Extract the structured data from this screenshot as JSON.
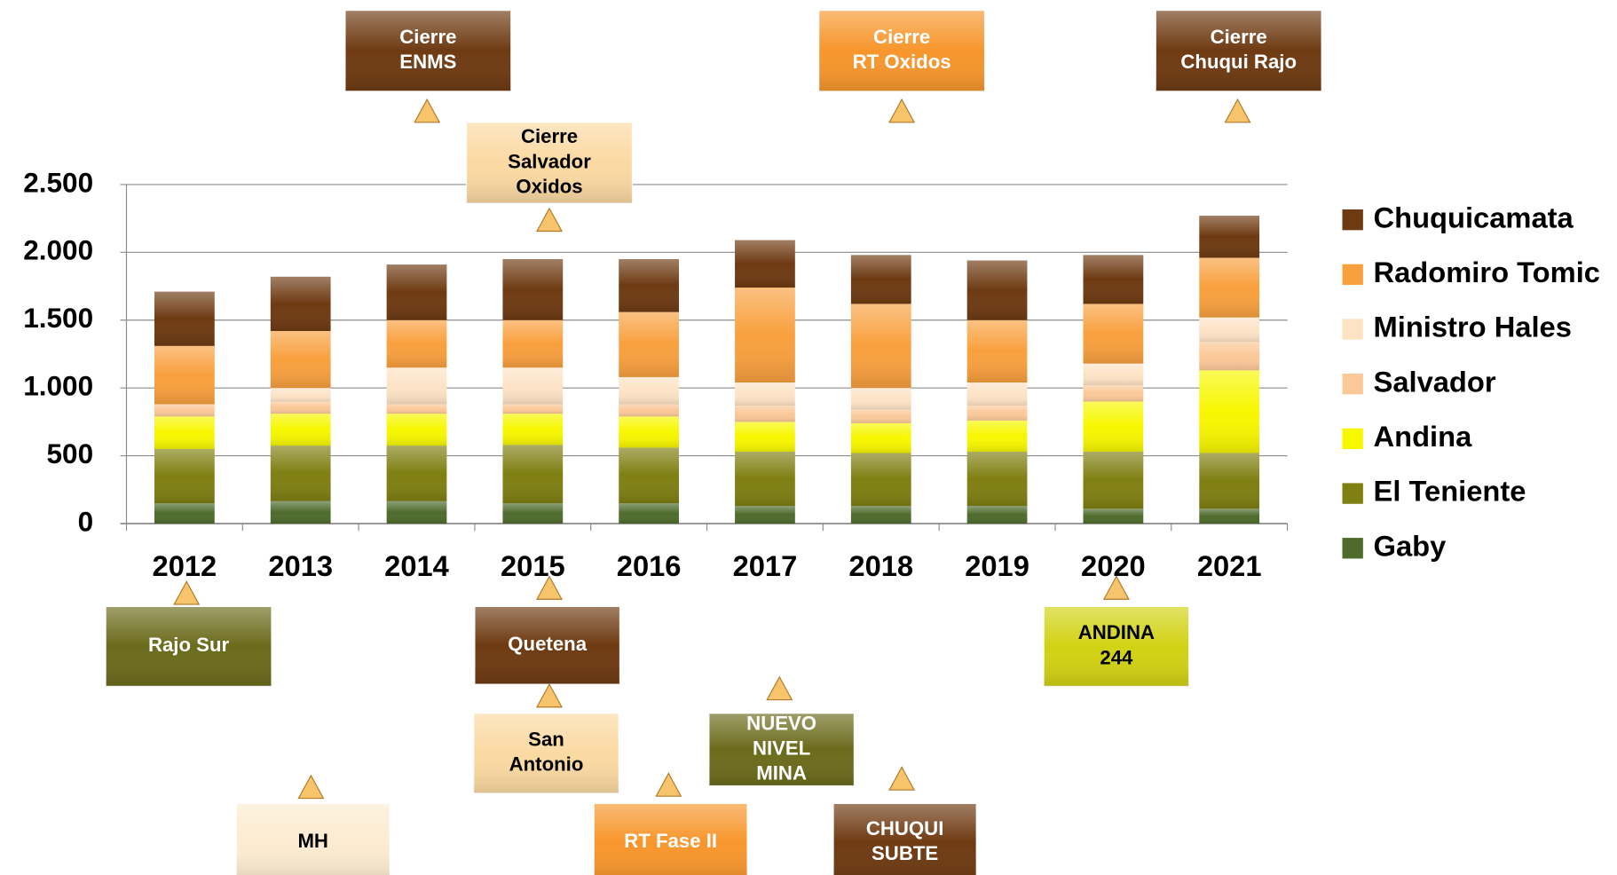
{
  "chart_data": {
    "type": "stacked_bar",
    "categories": [
      "2012",
      "2013",
      "2014",
      "2015",
      "2016",
      "2017",
      "2018",
      "2019",
      "2020",
      "2021"
    ],
    "series": [
      {
        "name": "Gaby",
        "color": "#4e6b2c",
        "values": [
          150,
          165,
          165,
          150,
          150,
          130,
          130,
          130,
          110,
          110
        ]
      },
      {
        "name": "El Teniente",
        "color": "#7f7f12",
        "values": [
          400,
          410,
          410,
          430,
          410,
          400,
          390,
          400,
          420,
          410
        ]
      },
      {
        "name": "Andina",
        "color": "#f7f700",
        "values": [
          240,
          235,
          235,
          230,
          230,
          220,
          220,
          230,
          370,
          610
        ]
      },
      {
        "name": "Salvador",
        "color": "#fbc898",
        "values": [
          90,
          90,
          70,
          70,
          90,
          120,
          100,
          110,
          120,
          210
        ]
      },
      {
        "name": "Ministro Hales",
        "color": "#fde3c6",
        "values": [
          0,
          100,
          270,
          270,
          200,
          170,
          160,
          170,
          160,
          180
        ]
      },
      {
        "name": "Radomiro Tomic",
        "color": "#f9a03e",
        "values": [
          430,
          420,
          350,
          350,
          480,
          700,
          620,
          460,
          440,
          440
        ]
      },
      {
        "name": "Chuquicamata",
        "color": "#6e3a12",
        "values": [
          400,
          400,
          410,
          450,
          390,
          350,
          360,
          440,
          360,
          310
        ]
      }
    ],
    "ylim": [
      0,
      2500
    ],
    "yticks": [
      0,
      500,
      {
        "value": 1000,
        "label": "1.000"
      },
      {
        "value": 1500,
        "label": "1.500"
      },
      {
        "value": 2000,
        "label": "2.000"
      },
      {
        "value": 2500,
        "label": "2.500"
      }
    ],
    "grid": true,
    "legend": "right"
  },
  "annotations": [
    {
      "lines": [
        "Cierre",
        "ENMS"
      ]
    },
    {
      "lines": [
        "Cierre",
        "RT Oxidos"
      ]
    },
    {
      "lines": [
        "Cierre",
        "Chuqui Rajo"
      ]
    },
    {
      "lines": [
        "Cierre",
        "Salvador",
        "Oxidos"
      ]
    },
    {
      "lines": [
        "Rajo Sur"
      ]
    },
    {
      "lines": [
        "Quetena"
      ]
    },
    {
      "lines": [
        "ANDINA",
        "244"
      ]
    },
    {
      "lines": [
        "San",
        "Antonio"
      ]
    },
    {
      "lines": [
        "NUEVO",
        "NIVEL",
        "MINA"
      ]
    },
    {
      "lines": [
        "MH"
      ]
    },
    {
      "lines": [
        "RT Fase II"
      ]
    },
    {
      "lines": [
        "CHUQUI",
        "SUBTE"
      ]
    }
  ]
}
